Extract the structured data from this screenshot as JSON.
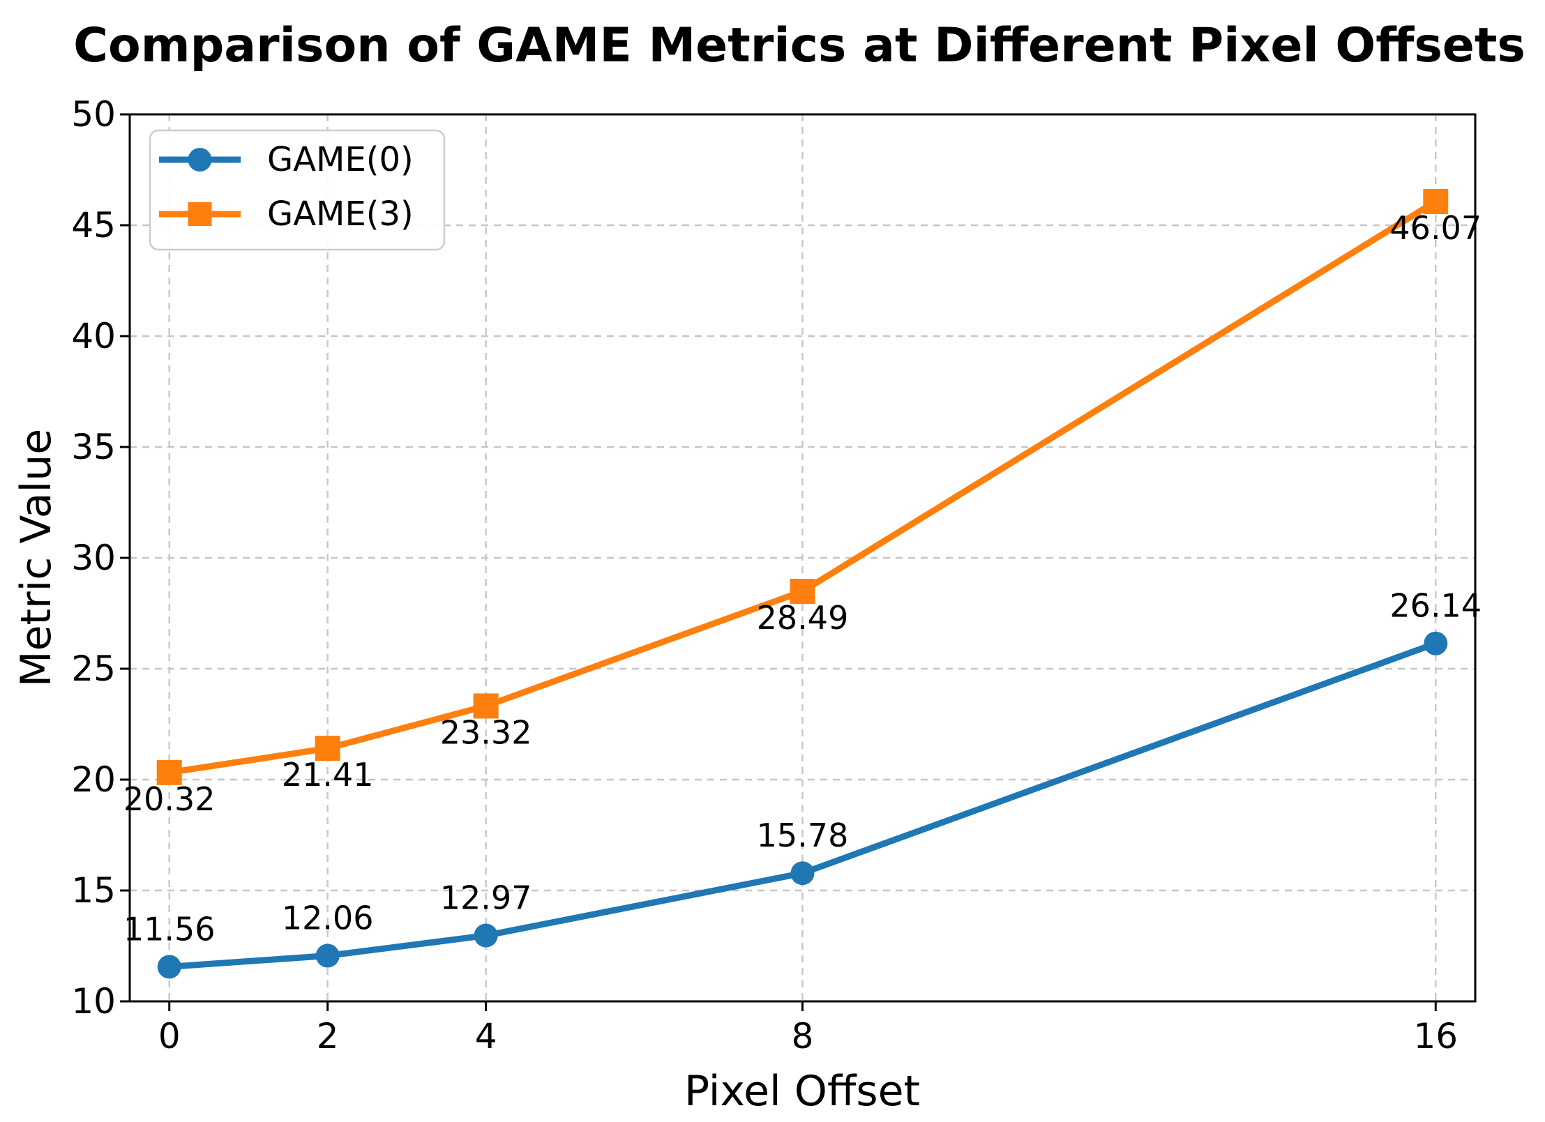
{
  "chart_data": {
    "type": "line",
    "title": "Comparison of GAME Metrics at Different Pixel Offsets",
    "xlabel": "Pixel Offset",
    "ylabel": "Metric Value",
    "x": [
      0,
      2,
      4,
      8,
      16
    ],
    "xtick_labels": [
      "0",
      "2",
      "4",
      "8",
      "16"
    ],
    "ytick_values": [
      10,
      15,
      20,
      25,
      30,
      35,
      40,
      45,
      50
    ],
    "ytick_labels": [
      "10",
      "15",
      "20",
      "25",
      "30",
      "35",
      "40",
      "45",
      "50"
    ],
    "xlim": [
      -0.5,
      16.5
    ],
    "ylim": [
      10,
      50
    ],
    "grid": {
      "visible": true,
      "style": "dashed",
      "color": "#c6c6c6"
    },
    "legend": {
      "position": "upper-left",
      "entries": [
        "GAME(0)",
        "GAME(3)"
      ]
    },
    "series": [
      {
        "name": "GAME(0)",
        "color": "#1f77b4",
        "marker": "circle",
        "values": [
          11.56,
          12.06,
          12.97,
          15.78,
          26.14
        ],
        "point_labels": [
          "11.56",
          "12.06",
          "12.97",
          "15.78",
          "26.14"
        ],
        "label_placement": "above"
      },
      {
        "name": "GAME(3)",
        "color": "#ff7f0e",
        "marker": "square",
        "values": [
          20.32,
          21.41,
          23.32,
          28.49,
          46.07
        ],
        "point_labels": [
          "20.32",
          "21.41",
          "23.32",
          "28.49",
          "46.07"
        ],
        "label_placement": "below"
      }
    ]
  }
}
